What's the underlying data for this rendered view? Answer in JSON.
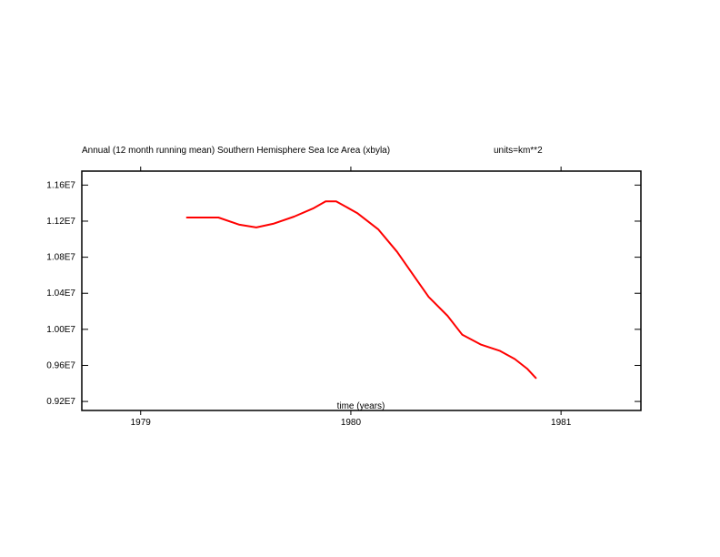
{
  "chart_data": {
    "type": "line",
    "title": "Annual (12 month running mean) Southern Hemisphere Sea Ice Area (xbyla)",
    "units": "units=km**2",
    "xlabel": "time (years)",
    "ylabel": "",
    "xlim": [
      1978.72,
      1981.38
    ],
    "ylim": [
      9100000.0,
      11755000.0
    ],
    "x_ticks": [
      1979,
      1980,
      1981
    ],
    "x_tick_labels": [
      "1979",
      "1980",
      "1981"
    ],
    "y_ticks": [
      9200000.0,
      9600000.0,
      10000000.0,
      10400000.0,
      10800000.0,
      11200000.0,
      11600000.0
    ],
    "y_tick_labels": [
      "0.92E7",
      "0.96E7",
      "1.00E7",
      "1.04E7",
      "1.08E7",
      "1.12E7",
      "1.16E7"
    ],
    "grid": false,
    "line_color": "#ff0000",
    "series": [
      {
        "x": [
          1979.22,
          1979.37,
          1979.47,
          1979.55,
          1979.63,
          1979.73,
          1979.82,
          1979.88,
          1979.93,
          1980.03,
          1980.13,
          1980.22,
          1980.31,
          1980.37,
          1980.46,
          1980.53,
          1980.62,
          1980.71,
          1980.78,
          1980.84,
          1980.88
        ],
        "y": [
          11240000.0,
          11240000.0,
          11160000.0,
          11130000.0,
          11170000.0,
          11250000.0,
          11340000.0,
          11420000.0,
          11420000.0,
          11290000.0,
          11110000.0,
          10860000.0,
          10560000.0,
          10360000.0,
          10150000.0,
          9940000.0,
          9830000.0,
          9760000.0,
          9670000.0,
          9560000.0,
          9460000.0
        ]
      }
    ]
  }
}
